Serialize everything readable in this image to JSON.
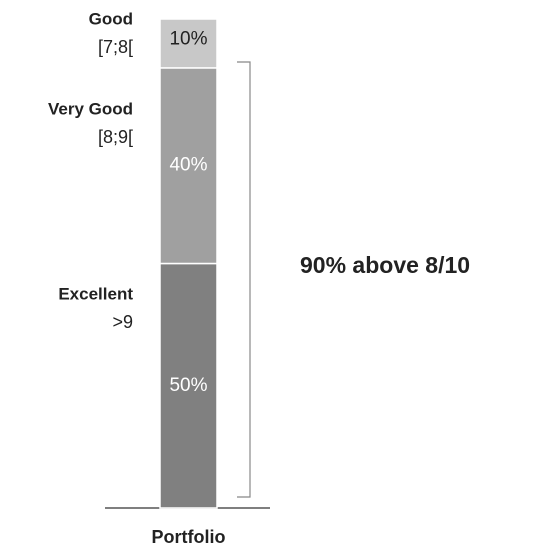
{
  "chart_data": {
    "type": "stacked_bar",
    "categories": [
      "Portfolio"
    ],
    "series": [
      {
        "name": "Excellent",
        "range": ">9",
        "color": "#808080",
        "values": [
          50
        ],
        "value_labels": [
          "50%"
        ]
      },
      {
        "name": "Very Good",
        "range": "[8;9[",
        "color": "#a0a0a0",
        "values": [
          40
        ],
        "value_labels": [
          "40%"
        ]
      },
      {
        "name": "Good",
        "range": "[7;8[",
        "color": "#c8c8c8",
        "values": [
          10
        ],
        "value_labels": [
          "10%"
        ]
      }
    ],
    "ylim": [
      0,
      100
    ],
    "annotation": "90% above 8/10"
  }
}
